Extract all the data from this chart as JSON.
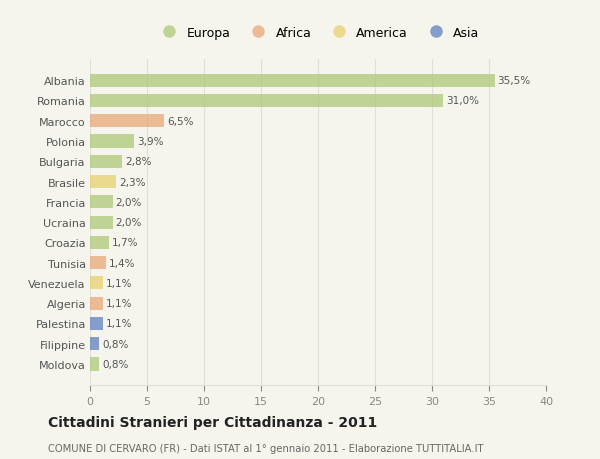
{
  "countries": [
    "Albania",
    "Romania",
    "Marocco",
    "Polonia",
    "Bulgaria",
    "Brasile",
    "Francia",
    "Ucraina",
    "Croazia",
    "Tunisia",
    "Venezuela",
    "Algeria",
    "Palestina",
    "Filippine",
    "Moldova"
  ],
  "values": [
    35.5,
    31.0,
    6.5,
    3.9,
    2.8,
    2.3,
    2.0,
    2.0,
    1.7,
    1.4,
    1.1,
    1.1,
    1.1,
    0.8,
    0.8
  ],
  "labels": [
    "35,5%",
    "31,0%",
    "6,5%",
    "3,9%",
    "2,8%",
    "2,3%",
    "2,0%",
    "2,0%",
    "1,7%",
    "1,4%",
    "1,1%",
    "1,1%",
    "1,1%",
    "0,8%",
    "0,8%"
  ],
  "continents": [
    "Europa",
    "Europa",
    "Africa",
    "Europa",
    "Europa",
    "America",
    "Europa",
    "Europa",
    "Europa",
    "Africa",
    "America",
    "Africa",
    "Asia",
    "Asia",
    "Europa"
  ],
  "colors": {
    "Europa": "#adc878",
    "Africa": "#e8a878",
    "America": "#e8d070",
    "Asia": "#6080c0"
  },
  "legend_order": [
    "Europa",
    "Africa",
    "America",
    "Asia"
  ],
  "title": "Cittadini Stranieri per Cittadinanza - 2011",
  "subtitle": "COMUNE DI CERVARO (FR) - Dati ISTAT al 1° gennaio 2011 - Elaborazione TUTTITALIA.IT",
  "xlim": [
    0,
    40
  ],
  "xticks": [
    0,
    5,
    10,
    15,
    20,
    25,
    30,
    35,
    40
  ],
  "background_color": "#f5f5ee",
  "grid_color": "#e0e0d8",
  "bar_alpha": 0.75
}
